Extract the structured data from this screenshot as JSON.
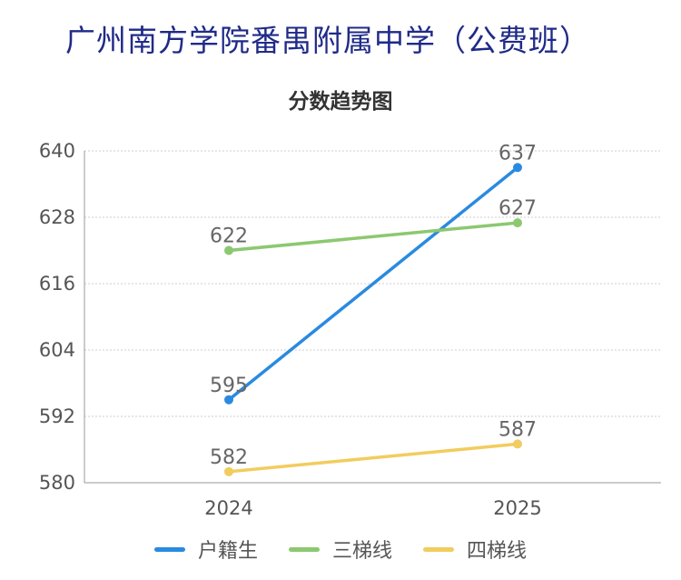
{
  "header": {
    "title": "广州南方学院番禺附属中学（公费班）"
  },
  "chart_data": {
    "type": "line",
    "title": "分数趋势图",
    "categories": [
      "2024",
      "2025"
    ],
    "ylim": [
      580,
      640
    ],
    "yticks": [
      580,
      592,
      604,
      616,
      628,
      640
    ],
    "grid": true,
    "legend_position": "bottom",
    "series": [
      {
        "name": "户籍生",
        "values": [
          595,
          637
        ],
        "color": "#2a8ae0"
      },
      {
        "name": "三梯线",
        "values": [
          622,
          627
        ],
        "color": "#8cc870"
      },
      {
        "name": "四梯线",
        "values": [
          582,
          587
        ],
        "color": "#f2cc5e"
      }
    ]
  }
}
